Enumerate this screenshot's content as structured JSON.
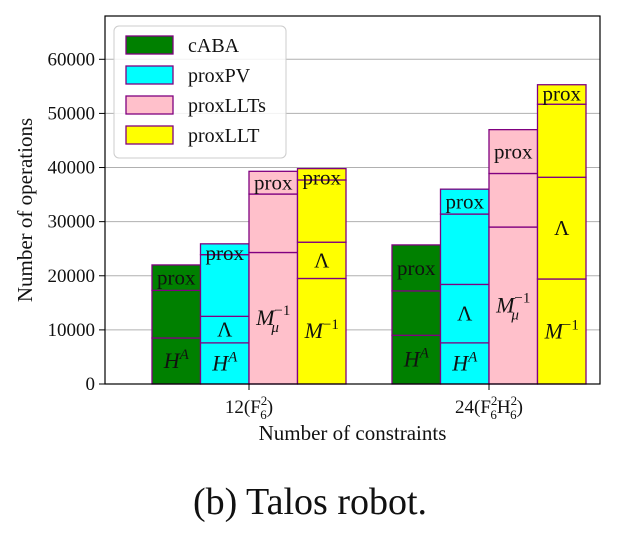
{
  "chart_data": {
    "type": "bar",
    "stacked": true,
    "grouped": true,
    "xlabel": "Number of constraints",
    "ylabel": "Number of operations",
    "ylim": [
      0,
      68000
    ],
    "yticks": [
      0,
      10000,
      20000,
      30000,
      40000,
      50000,
      60000
    ],
    "grid": "horizontal",
    "legend_position": "top-left",
    "categories": [
      "12(F6^2)",
      "24(F6^2H6^2)"
    ],
    "category_labels": [
      {
        "main": "12(F",
        "sup": "2",
        "sub": "6",
        "tail": ")"
      },
      {
        "main": "24(F",
        "sup": "2",
        "sub": "6",
        "mid": "H",
        "sup2": "2",
        "sub2": "6",
        "tail": ")"
      }
    ],
    "series": [
      {
        "name": "cABA",
        "color": "#008000",
        "segments": [
          [
            {
              "label": "H^A",
              "value": 8500
            },
            {
              "label": "",
              "value": 8800
            },
            {
              "label": "prox",
              "value": 4700
            }
          ],
          [
            {
              "label": "H^A",
              "value": 9000
            },
            {
              "label": "",
              "value": 8200
            },
            {
              "label": "prox",
              "value": 8500
            }
          ]
        ],
        "totals": [
          22000,
          25700
        ]
      },
      {
        "name": "proxPV",
        "color": "#00ffff",
        "segments": [
          [
            {
              "label": "H^A",
              "value": 7600
            },
            {
              "label": "Λ",
              "value": 4900
            },
            {
              "label": "",
              "value": 11400
            },
            {
              "label": "prox",
              "value": 2000
            }
          ],
          [
            {
              "label": "H^A",
              "value": 7600
            },
            {
              "label": "Λ",
              "value": 10800
            },
            {
              "label": "",
              "value": 13000
            },
            {
              "label": "prox",
              "value": 4600
            }
          ]
        ],
        "totals": [
          25900,
          36000
        ]
      },
      {
        "name": "proxLLTs",
        "color": "#ffc0cb",
        "segments": [
          [
            {
              "label": "M_μ^-1",
              "value": 24300
            },
            {
              "label": "",
              "value": 10800
            },
            {
              "label": "prox",
              "value": 4200
            }
          ],
          [
            {
              "label": "M_μ^-1",
              "value": 29000
            },
            {
              "label": "",
              "value": 9900
            },
            {
              "label": "prox",
              "value": 8100
            }
          ]
        ],
        "totals": [
          39300,
          47000
        ]
      },
      {
        "name": "proxLLT",
        "color": "#ffff00",
        "segments": [
          [
            {
              "label": "M^-1",
              "value": 19500
            },
            {
              "label": "Λ",
              "value": 6700
            },
            {
              "label": "",
              "value": 11500
            },
            {
              "label": "prox",
              "value": 2100
            }
          ],
          [
            {
              "label": "M^-1",
              "value": 19400
            },
            {
              "label": "Λ",
              "value": 18800
            },
            {
              "label": "",
              "value": 13500
            },
            {
              "label": "prox",
              "value": 3600
            }
          ]
        ],
        "totals": [
          39800,
          55300
        ]
      }
    ]
  },
  "caption": "(b) Talos robot."
}
